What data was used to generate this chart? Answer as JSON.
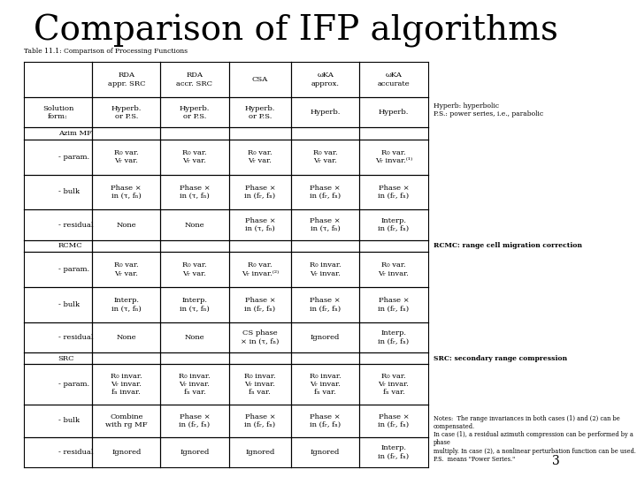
{
  "title": "Comparison of IFP algorithms",
  "title_fontsize": 28,
  "table_title": "Table 11.1: Comparison of Processing Functions",
  "bg_color": "#ffffff",
  "page_number": "3",
  "annotations": {
    "hyperb": "Hyperb: hyperbolic\nP.S.: power series, i.e., parabolic",
    "rcmc": "RCMC: range cell migration correction",
    "src": "SRC: secondary range compression",
    "notes": "Notes:  The range invariances in both cases (1) and (2) can be compensated.\nIn case (1), a residual azimuth compression can be performed by a phase\nmultiply. In case (2), a nonlinear perturbation function can be used.\nP.S.  means \"Power Series.\""
  },
  "col_headers": [
    "",
    "RDA\nappr. SRC",
    "RDA\naccr. SRC",
    "CSA",
    "ωKA\napprox.",
    "ωKA\naccurate"
  ],
  "row_groups": [
    {
      "group": "Solution\nform:",
      "bold": false,
      "rows": [
        {
          "label": "",
          "cells": [
            "Hyperb.\nor P.S.",
            "Hyperb.\nor P.S.",
            "Hyperb.\nor P.S.",
            "Hyperb.",
            "Hyperb."
          ]
        }
      ]
    },
    {
      "group": "Azim MF",
      "bold": false,
      "rows": [
        {
          "label": "- param.",
          "cells": [
            "R₀ var.\nVᵣ var.",
            "R₀ var.\nVᵣ var.",
            "R₀ var.\nVᵣ var.",
            "R₀ var.\nVᵣ var.",
            "R₀ var.\nVᵣ invar.⁽¹⁾"
          ]
        },
        {
          "label": "- bulk",
          "cells": [
            "Phase ×\nin (τ, fₙ)",
            "Phase ×\nin (τ, fₙ)",
            "Phase ×\nin (fᵣ, fₙ)",
            "Phase ×\nin (fᵣ, fₙ)",
            "Phase ×\nin (fᵣ, fₙ)"
          ]
        },
        {
          "label": "- residual",
          "cells": [
            "None",
            "None",
            "Phase ×\nin (τ, fₙ)",
            "Phase ×\nin (τ, fₙ)",
            "Interp.\nin (fᵣ, fₙ)"
          ]
        }
      ]
    },
    {
      "group": "RCMC",
      "bold": false,
      "rows": [
        {
          "label": "- param.",
          "cells": [
            "R₀ var.\nVᵣ var.",
            "R₀ var.\nVᵣ var.",
            "R₀ var.\nVᵣ invar.⁽²⁾",
            "R₀ invar.\nVᵣ invar.",
            "R₀ var.\nVᵣ invar."
          ]
        },
        {
          "label": "- bulk",
          "cells": [
            "Interp.\nin (τ, fₙ)",
            "Interp.\nin (τ, fₙ)",
            "Phase ×\nin (fᵣ, fₙ)",
            "Phase ×\nin (fᵣ, fₙ)",
            "Phase ×\nin (fᵣ, fₙ)"
          ]
        },
        {
          "label": "- residual",
          "cells": [
            "None",
            "None",
            "CS phase\n× in (τ, fₙ)",
            "Ignored",
            "Interp.\nin (fᵣ, fₙ)"
          ]
        }
      ]
    },
    {
      "group": "SRC",
      "bold": false,
      "rows": [
        {
          "label": "- param.",
          "cells": [
            "R₀ invar.\nVᵣ invar.\nfₙ invar.",
            "R₀ invar.\nVᵣ invar.\nfₙ var.",
            "R₀ invar.\nVᵣ invar.\nfₙ var.",
            "R₀ invar.\nVᵣ invar.\nfₙ var.",
            "R₀ var.\nVᵣ invar.\nfₙ var."
          ]
        },
        {
          "label": "- bulk",
          "cells": [
            "Combine\nwith rg MF",
            "Phase ×\nin (fᵣ, fₙ)",
            "Phase ×\nin (fᵣ, fₙ)",
            "Phase ×\nin (fᵣ, fₙ)",
            "Phase ×\nin (fᵣ, fₙ)"
          ]
        },
        {
          "label": "- residual",
          "cells": [
            "Ignored",
            "Ignored",
            "Ignored",
            "Ignored",
            "Interp.\nin (fᵣ, fₙ)"
          ]
        }
      ]
    }
  ]
}
